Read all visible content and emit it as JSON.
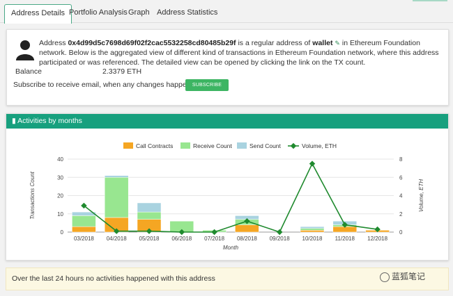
{
  "tabs": [
    "Address Details",
    "Portfolio Analysis",
    "Graph",
    "Address Statistics"
  ],
  "info": {
    "address_prefix": "Address ",
    "address": "0x4d99d5c7698d69f02f2cac5532258cd80485b29f",
    "mid1": " is a regular address of ",
    "wallet": "wallet",
    "rest": " in Ethereum Foundation network. Below is the aggregated view of different kind of transactions in Ethereum Foundation network, where this address participated or was referenced. The detailed view can be opened by clicking the link on the TX count.",
    "balance_label": "Balance",
    "balance_value": "2.3379 ETH",
    "subscribe_text": "Subscribe to receive email, when any changes happen with it:",
    "subscribe_button": "SUBSCRIBE"
  },
  "chart_header": "Activities by months",
  "footer": "Over the last 24 hours no activities happened with this address",
  "watermark": "蓝狐笔记",
  "colors": {
    "call": "#f5a623",
    "receive": "#98e690",
    "send": "#a9d3e0",
    "volume": "#1f8a2e",
    "header": "#17a07e",
    "button": "#3db563"
  },
  "chart_data": {
    "type": "bar",
    "stacked": true,
    "categories": [
      "03/2018",
      "04/2018",
      "05/2018",
      "06/2018",
      "07/2018",
      "08/2018",
      "09/2018",
      "10/2018",
      "11/2018",
      "12/2018"
    ],
    "series": [
      {
        "name": "Call Contracts",
        "values": [
          3,
          8,
          7,
          0,
          0,
          4,
          0,
          1,
          3,
          1
        ]
      },
      {
        "name": "Receive Count",
        "values": [
          6,
          22,
          4,
          6,
          1,
          3,
          0,
          1,
          1,
          0
        ]
      },
      {
        "name": "Send Count",
        "values": [
          2,
          1,
          5,
          0,
          0,
          2,
          0,
          1,
          2,
          0
        ]
      }
    ],
    "line_series": {
      "name": "Volume, ETH",
      "values": [
        2.9,
        0.1,
        0.1,
        0.0,
        0.0,
        1.2,
        0.0,
        7.5,
        0.8,
        0.3
      ]
    },
    "xlabel": "Month",
    "ylabel": "Transactions Count",
    "y2label": "Volume, ETH",
    "ylim": [
      0,
      40
    ],
    "y2lim": [
      0,
      8
    ],
    "yticks": [
      0,
      10,
      20,
      30,
      40
    ],
    "y2ticks": [
      0,
      2,
      4,
      6,
      8
    ],
    "grid": true,
    "legend": "top-center"
  }
}
